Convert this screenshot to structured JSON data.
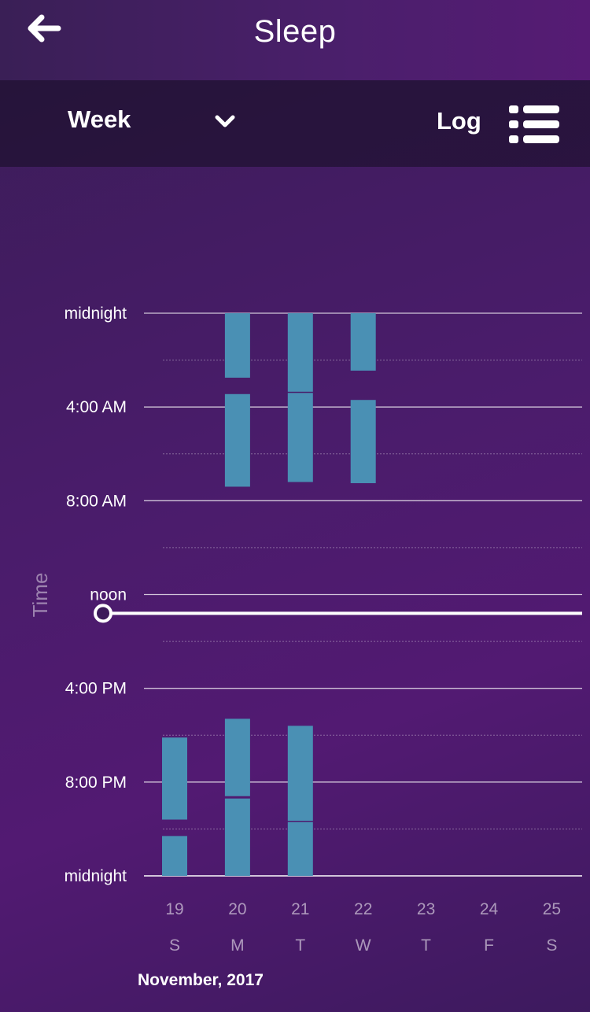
{
  "header": {
    "title": "Sleep",
    "back_icon": "arrow-left-icon"
  },
  "toolbar": {
    "range_label": "Week",
    "range_icon": "chevron-down-icon",
    "log_label": "Log",
    "log_icon": "list-icon"
  },
  "chart_data": {
    "type": "bar",
    "ylabel": "Time",
    "y_tick_labels": [
      "midnight",
      "4:00 AM",
      "8:00 AM",
      "noon",
      "4:00 PM",
      "8:00 PM",
      "midnight"
    ],
    "y_range_hours": [
      0,
      24
    ],
    "days": [
      "19",
      "20",
      "21",
      "22",
      "23",
      "24",
      "25"
    ],
    "weekdays": [
      "S",
      "M",
      "T",
      "W",
      "T",
      "F",
      "S"
    ],
    "month_label": "November, 2017",
    "current_time_hours": 12.8,
    "bar_color": "#4a90b4",
    "sleep_blocks": [
      {
        "day": "19",
        "start": 18.1,
        "end": 21.6
      },
      {
        "day": "19",
        "start": 22.3,
        "end": 24.0
      },
      {
        "day": "20",
        "start": 0.0,
        "end": 2.75
      },
      {
        "day": "20",
        "start": 3.45,
        "end": 7.4
      },
      {
        "day": "20",
        "start": 17.3,
        "end": 20.6
      },
      {
        "day": "20",
        "start": 20.7,
        "end": 24.0
      },
      {
        "day": "21",
        "start": 0.0,
        "end": 3.35
      },
      {
        "day": "21",
        "start": 3.4,
        "end": 7.2
      },
      {
        "day": "21",
        "start": 17.6,
        "end": 21.65
      },
      {
        "day": "21",
        "start": 21.7,
        "end": 24.0
      },
      {
        "day": "22",
        "start": 0.0,
        "end": 2.45
      },
      {
        "day": "22",
        "start": 3.7,
        "end": 7.25
      }
    ]
  }
}
